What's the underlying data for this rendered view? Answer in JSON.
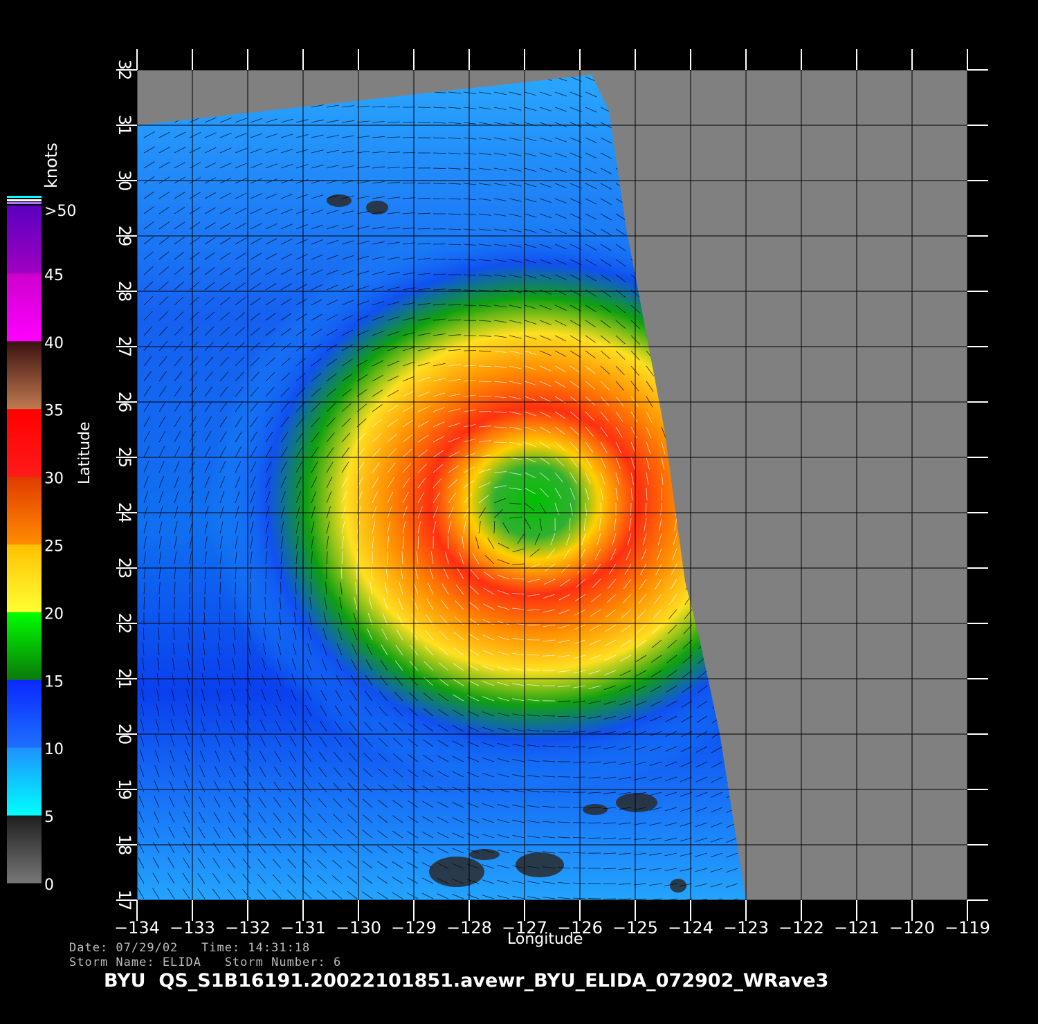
{
  "plot": {
    "xlabel": "Longitude",
    "ylabel": "Latitude",
    "x_ticks": [
      "−134",
      "−133",
      "−132",
      "−131",
      "−130",
      "−129",
      "−128",
      "−127",
      "−126",
      "−125",
      "−124",
      "−123",
      "−122",
      "−121",
      "−120",
      "−119"
    ],
    "y_ticks": [
      "17",
      "18",
      "19",
      "20",
      "21",
      "22",
      "23",
      "24",
      "25",
      "26",
      "27",
      "28",
      "29",
      "30",
      "31",
      "32"
    ],
    "lon_range": [
      -134,
      -119
    ],
    "lat_range": [
      17,
      32
    ],
    "storm_center": {
      "lon": -127.2,
      "lat": 23.7
    },
    "colors": {
      "background": "#000000",
      "no_data": "#808080",
      "grid": "#000000"
    }
  },
  "colorbar": {
    "units": "knots",
    "labels": [
      ">50",
      "45",
      "40",
      "35",
      "30",
      "25",
      "20",
      "15",
      "10",
      "5",
      "0"
    ],
    "bands": [
      {
        "from": 0,
        "to": 5,
        "colors": [
          "#777777",
          "#1e1e1e"
        ]
      },
      {
        "from": 5,
        "to": 10,
        "colors": [
          "#00ffff",
          "#1e90ff"
        ]
      },
      {
        "from": 10,
        "to": 15,
        "colors": [
          "#1e6fff",
          "#0a28ff"
        ]
      },
      {
        "from": 15,
        "to": 20,
        "colors": [
          "#0a7a0a",
          "#00ff00"
        ]
      },
      {
        "from": 20,
        "to": 25,
        "colors": [
          "#ffff33",
          "#ffc000"
        ]
      },
      {
        "from": 25,
        "to": 30,
        "colors": [
          "#ff8c00",
          "#e03a00"
        ]
      },
      {
        "from": 30,
        "to": 35,
        "colors": [
          "#ff1a1a",
          "#ff0000"
        ]
      },
      {
        "from": 35,
        "to": 40,
        "colors": [
          "#c07a50",
          "#3a1010"
        ]
      },
      {
        "from": 40,
        "to": 45,
        "colors": [
          "#ff00ff",
          "#cc00cc"
        ]
      },
      {
        "from": 45,
        "to": 50,
        "colors": [
          "#a000c0",
          "#5a00c0"
        ]
      }
    ]
  },
  "footer": {
    "line1": "Date: 07/29/02   Time: 14:31:18",
    "line2": "Storm Name: ELIDA   Storm Number: 6",
    "title": "BYU  QS_S1B16191.20022101851.avewr_BYU_ELIDA_072902_WRave3"
  }
}
